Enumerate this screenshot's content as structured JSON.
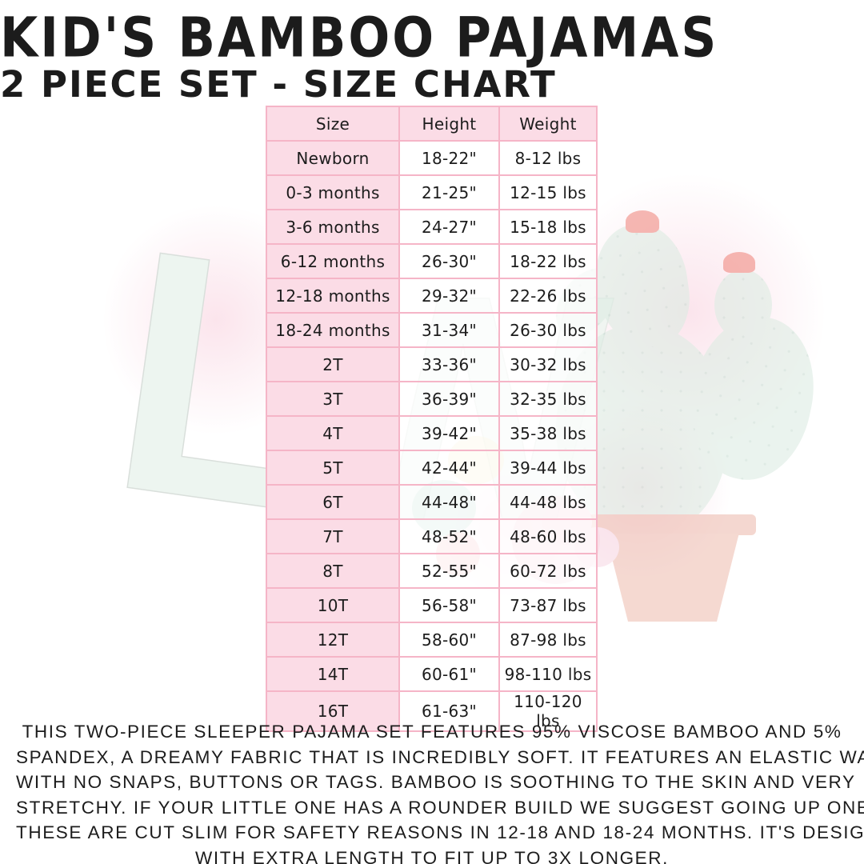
{
  "page": {
    "title": "KID'S BAMBOO PAJAMAS",
    "subtitle": "2 PIECE SET - SIZE CHART"
  },
  "size_chart": {
    "columns": [
      "Size",
      "Height",
      "Weight"
    ],
    "rows": [
      [
        "Newborn",
        "18-22\"",
        "8-12 lbs"
      ],
      [
        "0-3 months",
        "21-25\"",
        "12-15 lbs"
      ],
      [
        "3-6 months",
        "24-27\"",
        "15-18 lbs"
      ],
      [
        "6-12 months",
        "26-30\"",
        "18-22 lbs"
      ],
      [
        "12-18 months",
        "29-32\"",
        "22-26 lbs"
      ],
      [
        "18-24 months",
        "31-34\"",
        "26-30 lbs"
      ],
      [
        "2T",
        "33-36\"",
        "30-32 lbs"
      ],
      [
        "3T",
        "36-39\"",
        "32-35 lbs"
      ],
      [
        "4T",
        "39-42\"",
        "35-38 lbs"
      ],
      [
        "5T",
        "42-44\"",
        "39-44 lbs"
      ],
      [
        "6T",
        "44-48\"",
        "44-48 lbs"
      ],
      [
        "7T",
        "48-52\"",
        "48-60 lbs"
      ],
      [
        "8T",
        "52-55\"",
        "60-72 lbs"
      ],
      [
        "10T",
        "56-58\"",
        "73-87 lbs"
      ],
      [
        "12T",
        "58-60\"",
        "87-98 lbs"
      ],
      [
        "14T",
        "60-61\"",
        "98-110 lbs"
      ],
      [
        "16T",
        "61-63\"",
        "110-120 lbs"
      ]
    ]
  },
  "description": {
    "lines": [
      "THIS TWO-PIECE SLEEPER PAJAMA SET FEATURES 95% VISCOSE BAMBOO AND 5%",
      "SPANDEX, A DREAMY FABRIC THAT IS INCREDIBLY SOFT. IT FEATURES AN ELASTIC WAIST",
      "WITH NO SNAPS, BUTTONS OR TAGS. BAMBOO IS SOOTHING TO THE SKIN AND VERY",
      "STRETCHY. IF YOUR LITTLE ONE HAS A ROUNDER BUILD WE SUGGEST GOING UP ONE SIZE.",
      "THESE ARE CUT SLIM FOR SAFETY REASONS IN 12-18 AND 18-24 MONTHS. IT'S DESIGNED",
      "WITH EXTRA LENGTH TO FIT UP TO 3X LONGER."
    ]
  },
  "watermark": {
    "letter_l": "L",
    "letter_w": "W"
  },
  "colors": {
    "cell_pink": "#fbdce6",
    "grid_pink": "#f5b5c7",
    "text": "#1c1c1c",
    "cactus_green": "#ddece3",
    "pot_terracotta": "#efc0b4",
    "flower_coral": "#f08b82",
    "blush_pink": "#f9d6e2"
  }
}
